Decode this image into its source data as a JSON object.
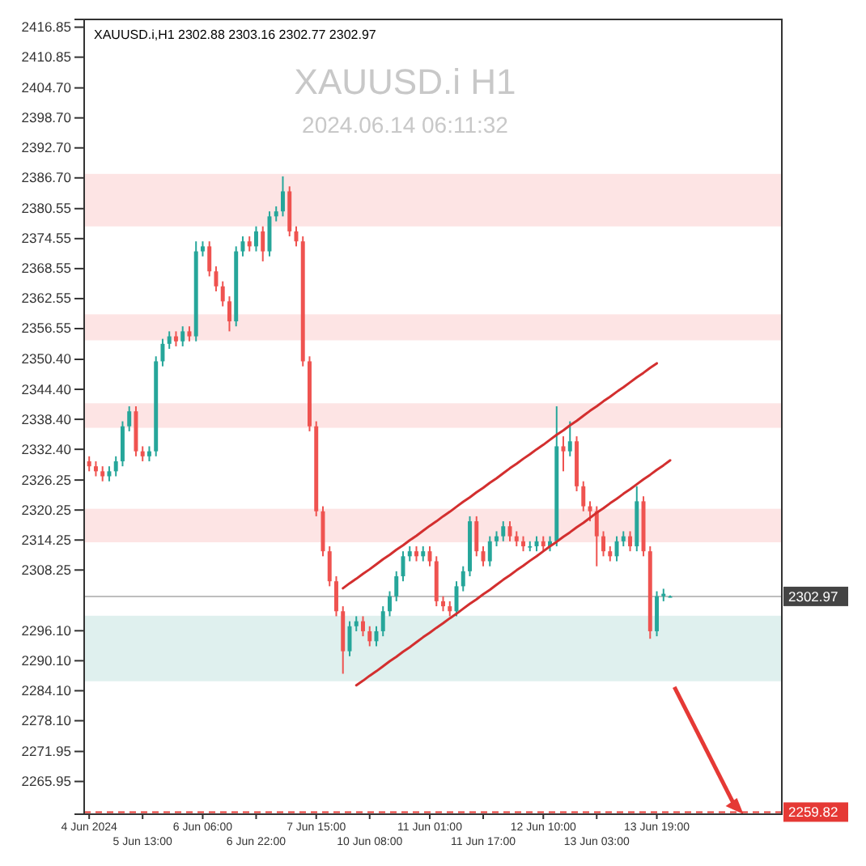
{
  "chart_data": {
    "type": "candlestick",
    "title": "XAUUSD.i H1",
    "subtitle": "2024.06.14 06:11:32",
    "annotations": [
      "XAUUSD.i,H1 2302.88 2303.16 2302.77 2302.97"
    ],
    "categories": [
      "4 Jun 2024",
      null,
      null,
      null,
      null,
      null,
      null,
      null,
      "5 Jun 13:00",
      null,
      null,
      null,
      null,
      null,
      null,
      null,
      null,
      "6 Jun 06:00",
      null,
      null,
      null,
      null,
      null,
      null,
      null,
      "6 Jun 22:00",
      null,
      null,
      null,
      null,
      null,
      null,
      null,
      null,
      "7 Jun 15:00",
      null,
      null,
      null,
      null,
      null,
      null,
      null,
      "10 Jun 08:00",
      null,
      null,
      null,
      null,
      null,
      null,
      null,
      null,
      "11 Jun 01:00",
      null,
      null,
      null,
      null,
      null,
      null,
      null,
      "11 Jun 17:00",
      null,
      null,
      null,
      null,
      null,
      null,
      null,
      null,
      "12 Jun 10:00",
      null,
      null,
      null,
      null,
      null,
      null,
      null,
      "13 Jun 03:00",
      null,
      null,
      null,
      null,
      null,
      null,
      null,
      null,
      "13 Jun 19:00",
      null,
      null
    ],
    "ohlc": [
      [
        2330,
        2331,
        2328,
        2329
      ],
      [
        2329,
        2330,
        2327,
        2328
      ],
      [
        2328,
        2329,
        2326,
        2327
      ],
      [
        2327,
        2329,
        2326,
        2328
      ],
      [
        2328,
        2331,
        2327,
        2330
      ],
      [
        2330,
        2338,
        2329,
        2337
      ],
      [
        2337,
        2341,
        2336,
        2340
      ],
      [
        2340,
        2341,
        2331,
        2332
      ],
      [
        2332,
        2333,
        2330,
        2331
      ],
      [
        2331,
        2333,
        2330,
        2332
      ],
      [
        2332,
        2351,
        2331,
        2350
      ],
      [
        2350,
        2354.5,
        2349,
        2353.5
      ],
      [
        2353.5,
        2356,
        2352.5,
        2355
      ],
      [
        2355,
        2356,
        2353,
        2354
      ],
      [
        2354,
        2357,
        2353,
        2356
      ],
      [
        2356,
        2357,
        2354,
        2355
      ],
      [
        2355,
        2374,
        2354,
        2372
      ],
      [
        2372,
        2374,
        2371,
        2373
      ],
      [
        2373,
        2374,
        2367,
        2368
      ],
      [
        2368,
        2369,
        2364,
        2365
      ],
      [
        2365,
        2366,
        2361,
        2362
      ],
      [
        2362,
        2363,
        2356,
        2358
      ],
      [
        2358,
        2373,
        2357,
        2372
      ],
      [
        2372,
        2375,
        2371,
        2374
      ],
      [
        2374,
        2375,
        2372,
        2373
      ],
      [
        2373,
        2377,
        2372,
        2376
      ],
      [
        2376,
        2377,
        2370,
        2372
      ],
      [
        2372,
        2380,
        2371,
        2379
      ],
      [
        2379,
        2381,
        2378,
        2380
      ],
      [
        2380,
        2387,
        2379,
        2384
      ],
      [
        2384,
        2385,
        2375,
        2376
      ],
      [
        2376,
        2377,
        2373,
        2374
      ],
      [
        2374,
        2375,
        2349,
        2350
      ],
      [
        2350,
        2351,
        2336,
        2337
      ],
      [
        2337,
        2338,
        2319,
        2320
      ],
      [
        2320,
        2321,
        2311,
        2312
      ],
      [
        2312,
        2313,
        2305,
        2306
      ],
      [
        2306,
        2307,
        2299,
        2300
      ],
      [
        2300,
        2301,
        2287.5,
        2292
      ],
      [
        2292,
        2298,
        2291,
        2297
      ],
      [
        2297,
        2299,
        2296,
        2298
      ],
      [
        2298,
        2299,
        2295,
        2296
      ],
      [
        2296,
        2297,
        2293,
        2294
      ],
      [
        2294,
        2297,
        2293,
        2296
      ],
      [
        2296,
        2301,
        2295,
        2300
      ],
      [
        2300,
        2304,
        2299,
        2303
      ],
      [
        2303,
        2308,
        2302,
        2307
      ],
      [
        2307,
        2312,
        2306,
        2311
      ],
      [
        2311,
        2313,
        2310,
        2312
      ],
      [
        2312,
        2313,
        2310,
        2311
      ],
      [
        2311,
        2313,
        2310,
        2312
      ],
      [
        2312,
        2313,
        2309,
        2310
      ],
      [
        2310,
        2311,
        2301,
        2302
      ],
      [
        2302,
        2303,
        2300,
        2301
      ],
      [
        2301,
        2302,
        2299,
        2300
      ],
      [
        2300,
        2306,
        2299,
        2305
      ],
      [
        2305,
        2309,
        2304,
        2308
      ],
      [
        2308,
        2319,
        2307,
        2318
      ],
      [
        2318,
        2319,
        2311,
        2312
      ],
      [
        2312,
        2313,
        2309,
        2310
      ],
      [
        2310,
        2315,
        2309,
        2314
      ],
      [
        2314,
        2316,
        2313,
        2315
      ],
      [
        2315,
        2318,
        2314,
        2317
      ],
      [
        2317,
        2318,
        2314,
        2315
      ],
      [
        2315,
        2316,
        2313,
        2314
      ],
      [
        2314,
        2315,
        2312,
        2313
      ],
      [
        2313,
        2314,
        2312,
        2313
      ],
      [
        2313,
        2315,
        2312,
        2314
      ],
      [
        2314,
        2315,
        2312,
        2313
      ],
      [
        2313,
        2315,
        2312,
        2314
      ],
      [
        2314,
        2341,
        2313,
        2333
      ],
      [
        2333,
        2335,
        2328,
        2332
      ],
      [
        2332,
        2338,
        2331,
        2334
      ],
      [
        2334,
        2335,
        2324,
        2325
      ],
      [
        2325,
        2326,
        2320,
        2321
      ],
      [
        2321,
        2322,
        2318,
        2320
      ],
      [
        2320,
        2321,
        2309,
        2315
      ],
      [
        2315,
        2316,
        2311,
        2312
      ],
      [
        2312,
        2313,
        2310,
        2311
      ],
      [
        2311,
        2315,
        2310,
        2314
      ],
      [
        2314,
        2316,
        2313,
        2315
      ],
      [
        2315,
        2316,
        2312,
        2313
      ],
      [
        2313,
        2325,
        2312,
        2322
      ],
      [
        2322,
        2323,
        2311,
        2312
      ],
      [
        2312,
        2313,
        2294.5,
        2296
      ],
      [
        2296,
        2304,
        2295,
        2303
      ],
      [
        2303,
        2304.5,
        2302,
        2303.5
      ],
      [
        2302.88,
        2303.16,
        2302.77,
        2302.97
      ]
    ],
    "series": [
      {
        "type": "line",
        "color": "#d32f2f",
        "values": [
          null,
          null,
          null,
          null,
          null,
          null,
          null,
          null,
          null,
          null,
          null,
          null,
          null,
          null,
          null,
          null,
          null,
          null,
          null,
          null,
          null,
          null,
          null,
          null,
          null,
          null,
          null,
          null,
          null,
          null,
          null,
          null,
          null,
          null,
          null,
          null,
          null,
          null,
          2304.6,
          2305.6,
          2306.5,
          2307.5,
          2308.4,
          2309.4,
          2310.4,
          2311.3,
          2312.3,
          2313.2,
          2314.2,
          2315.1,
          2316.1,
          2317.1,
          2318.0,
          2319.0,
          2319.9,
          2320.9,
          2321.9,
          2322.8,
          2323.8,
          2324.7,
          2325.7,
          2326.6,
          2327.6,
          2328.6,
          2329.5,
          2330.5,
          2331.4,
          2332.4,
          2333.3,
          2334.3,
          2335.3,
          2336.2,
          2337.2,
          2338.1,
          2339.1,
          2340.1,
          2341.0,
          2342.0,
          2342.9,
          2343.9,
          2344.8,
          2345.8,
          2346.8,
          2347.7,
          2348.7,
          2349.6,
          null,
          null
        ]
      },
      {
        "type": "line",
        "color": "#d32f2f",
        "values": [
          null,
          null,
          null,
          null,
          null,
          null,
          null,
          null,
          null,
          null,
          null,
          null,
          null,
          null,
          null,
          null,
          null,
          null,
          null,
          null,
          null,
          null,
          null,
          null,
          null,
          null,
          null,
          null,
          null,
          null,
          null,
          null,
          null,
          null,
          null,
          null,
          null,
          null,
          null,
          null,
          2285.2,
          2286.1,
          2287.1,
          2288.0,
          2289.0,
          2290.0,
          2290.9,
          2291.9,
          2292.8,
          2293.8,
          2294.8,
          2295.7,
          2296.7,
          2297.6,
          2298.6,
          2299.5,
          2300.5,
          2301.5,
          2302.4,
          2303.4,
          2304.3,
          2305.3,
          2306.3,
          2307.2,
          2308.2,
          2309.1,
          2310.1,
          2311.0,
          2312.0,
          2313.0,
          2313.9,
          2314.9,
          2315.8,
          2316.8,
          2317.7,
          2318.7,
          2319.7,
          2320.6,
          2321.6,
          2322.5,
          2323.5,
          2324.4,
          2325.4,
          2326.4,
          2327.3,
          2328.3,
          2329.2,
          2330.2
        ]
      }
    ],
    "bands": [
      {
        "axis": "y",
        "from": 2377,
        "to": 2387.5,
        "color": "#fde4e4"
      },
      {
        "axis": "y",
        "from": 2354.2,
        "to": 2359.4,
        "color": "#fde4e4"
      },
      {
        "axis": "y",
        "from": 2336.7,
        "to": 2341.6,
        "color": "#fde4e4"
      },
      {
        "axis": "y",
        "from": 2313.8,
        "to": 2320.5,
        "color": "#fde4e4"
      },
      {
        "axis": "y",
        "from": 2286,
        "to": 2299.1,
        "color": "#dff0ee"
      }
    ],
    "ref_lines": [
      {
        "axis": "y",
        "value": 2302.97,
        "label": "2302.97",
        "color": "#444444"
      },
      {
        "axis": "y",
        "value": 2259.82,
        "label": "2259.82",
        "color": "#e53935",
        "line_style": "dashed"
      }
    ],
    "ylim": [
      2259.4,
      2418.4
    ],
    "yticks": [
      {
        "value": 2416.85,
        "label": "2416.85"
      },
      {
        "value": 2410.85,
        "label": "2410.85"
      },
      {
        "value": 2404.7,
        "label": "2404.70"
      },
      {
        "value": 2398.7,
        "label": "2398.70"
      },
      {
        "value": 2392.7,
        "label": "2392.70"
      },
      {
        "value": 2386.7,
        "label": "2386.70"
      },
      {
        "value": 2380.55,
        "label": "2380.55"
      },
      {
        "value": 2374.55,
        "label": "2374.55"
      },
      {
        "value": 2368.55,
        "label": "2368.55"
      },
      {
        "value": 2362.55,
        "label": "2362.55"
      },
      {
        "value": 2356.55,
        "label": "2356.55"
      },
      {
        "value": 2350.4,
        "label": "2350.40"
      },
      {
        "value": 2344.4,
        "label": "2344.40"
      },
      {
        "value": 2338.4,
        "label": "2338.40"
      },
      {
        "value": 2332.4,
        "label": "2332.40"
      },
      {
        "value": 2326.25,
        "label": "2326.25"
      },
      {
        "value": 2320.25,
        "label": "2320.25"
      },
      {
        "value": 2314.25,
        "label": "2314.25"
      },
      {
        "value": 2308.25,
        "label": "2308.25"
      },
      {
        "value": 2296.1,
        "label": "2296.10"
      },
      {
        "value": 2290.1,
        "label": "2290.10"
      },
      {
        "value": 2284.1,
        "label": "2284.10"
      },
      {
        "value": 2278.1,
        "label": "2278.10"
      },
      {
        "value": 2271.95,
        "label": "2271.95"
      },
      {
        "value": 2265.95,
        "label": "2265.95"
      }
    ],
    "grid": false
  }
}
